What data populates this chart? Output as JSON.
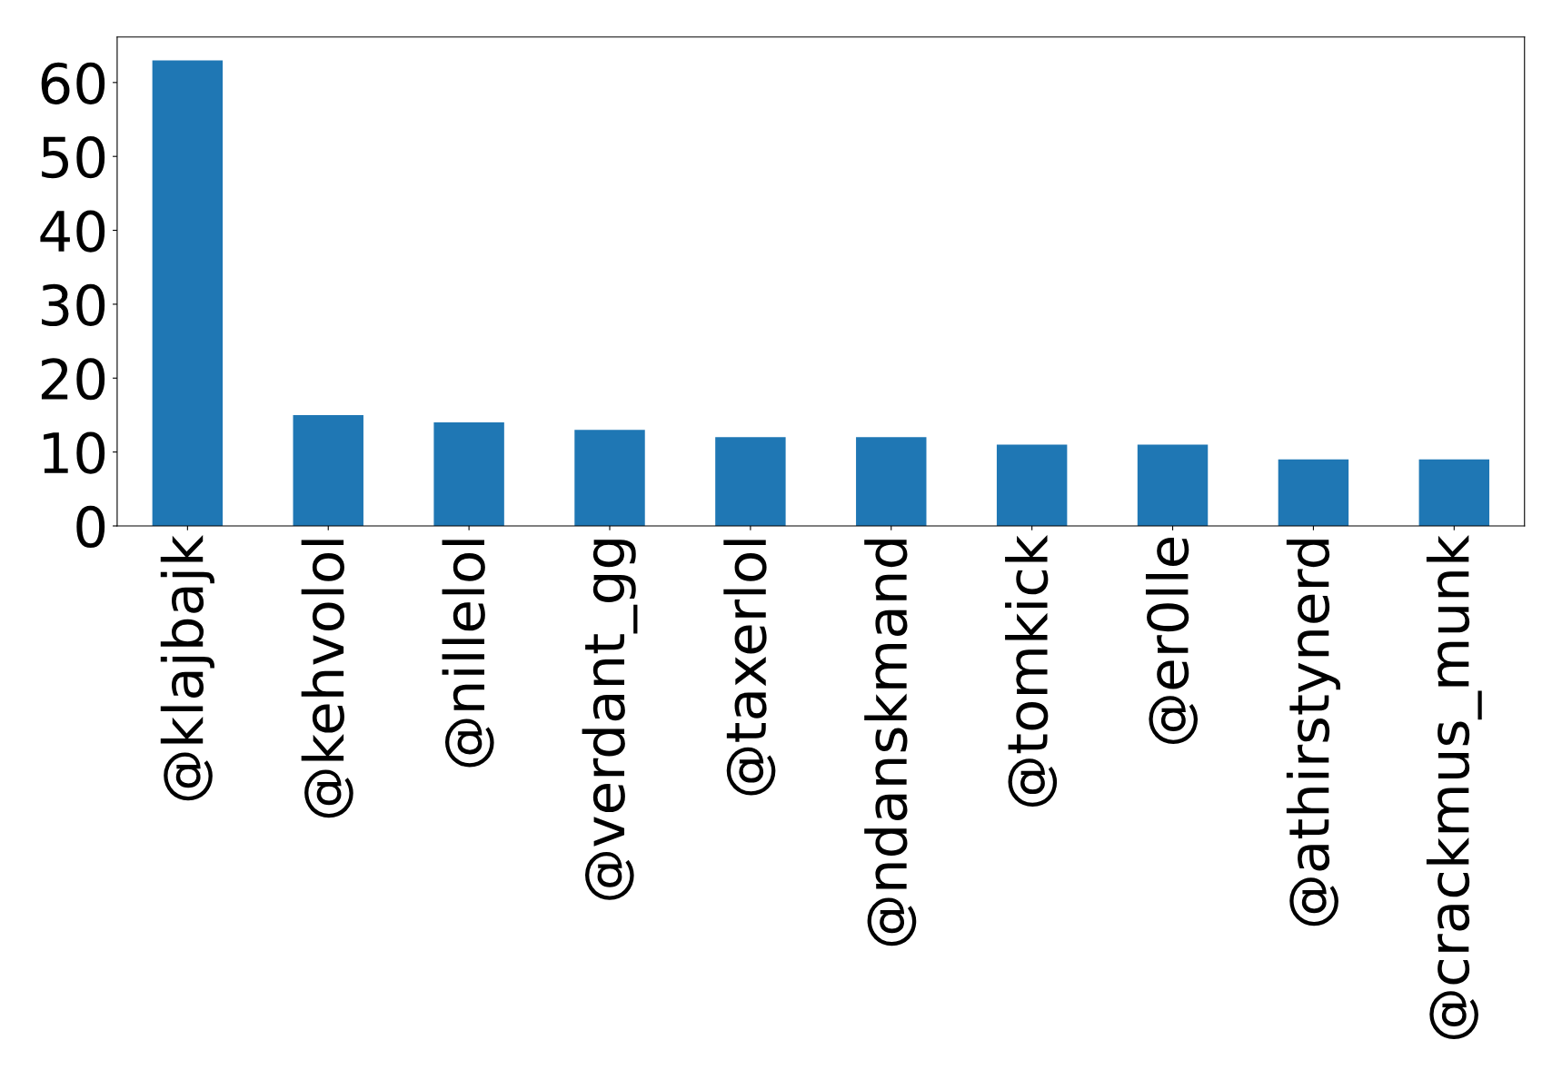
{
  "chart_data": {
    "type": "bar",
    "categories": [
      "@klajbajk",
      "@kehvolol",
      "@nillelol",
      "@verdant_gg",
      "@taxerlol",
      "@ndanskmand",
      "@tomkick",
      "@er0lle",
      "@athirstynerd",
      "@crackmus_munk"
    ],
    "values": [
      63,
      15,
      14,
      13,
      12,
      12,
      11,
      11,
      9,
      9
    ],
    "color": "#1f77b4",
    "ylim": [
      0,
      66.15
    ],
    "yticks": [
      0,
      10,
      20,
      30,
      40,
      50,
      60
    ],
    "grid": false
  }
}
